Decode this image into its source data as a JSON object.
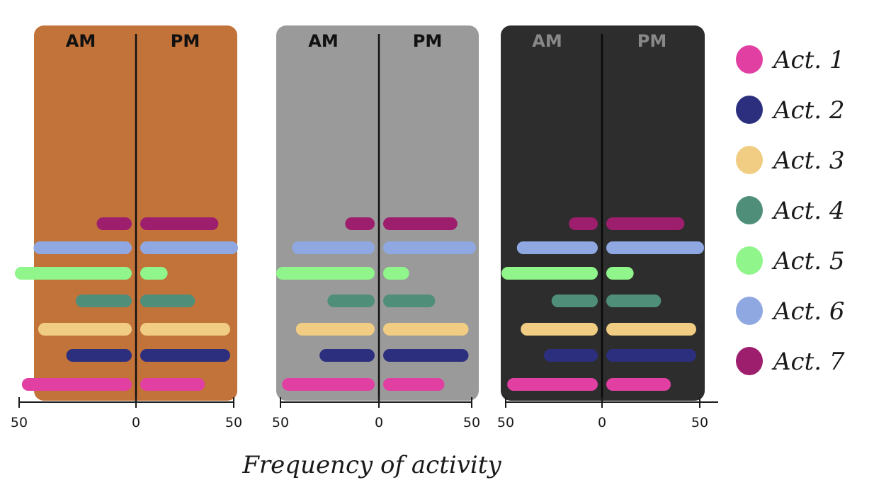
{
  "chart_data": {
    "type": "bar",
    "orientation": "diverging-horizontal",
    "xlabel": "Frequency of activity",
    "xlim": [
      -50,
      50
    ],
    "xticks": [
      "50",
      "0",
      "50"
    ],
    "halves": [
      "AM",
      "PM"
    ],
    "legend_placement": "right",
    "series": [
      {
        "name": "Act. 1",
        "color": "#e23fa3"
      },
      {
        "name": "Act. 2",
        "color": "#2c2f7e"
      },
      {
        "name": "Act. 3",
        "color": "#f0cd82"
      },
      {
        "name": "Act. 4",
        "color": "#4f8f7a"
      },
      {
        "name": "Act. 5",
        "color": "#90f58a"
      },
      {
        "name": "Act. 6",
        "color": "#8fa8e2"
      },
      {
        "name": "Act. 7",
        "color": "#9e1e6e"
      }
    ],
    "panels": [
      {
        "background": "#c2733a",
        "values": {
          "Act. 1": {
            "AM": 47,
            "PM": 33
          },
          "Act. 2": {
            "AM": 28,
            "PM": 46
          },
          "Act. 3": {
            "AM": 40,
            "PM": 46
          },
          "Act. 4": {
            "AM": 24,
            "PM": 28
          },
          "Act. 5": {
            "AM": 50,
            "PM": 14
          },
          "Act. 6": {
            "AM": 42,
            "PM": 50
          },
          "Act. 7": {
            "AM": 15,
            "PM": 40
          }
        }
      },
      {
        "background": "#9a9a9a",
        "values": {
          "Act. 1": {
            "AM": 47,
            "PM": 33
          },
          "Act. 2": {
            "AM": 28,
            "PM": 46
          },
          "Act. 3": {
            "AM": 40,
            "PM": 46
          },
          "Act. 4": {
            "AM": 24,
            "PM": 28
          },
          "Act. 5": {
            "AM": 50,
            "PM": 14
          },
          "Act. 6": {
            "AM": 42,
            "PM": 50
          },
          "Act. 7": {
            "AM": 15,
            "PM": 40
          }
        }
      },
      {
        "background": "#2d2d2d",
        "values": {
          "Act. 1": {
            "AM": 47,
            "PM": 33
          },
          "Act. 2": {
            "AM": 28,
            "PM": 46
          },
          "Act. 3": {
            "AM": 40,
            "PM": 46
          },
          "Act. 4": {
            "AM": 24,
            "PM": 28
          },
          "Act. 5": {
            "AM": 50,
            "PM": 14
          },
          "Act. 6": {
            "AM": 42,
            "PM": 50
          },
          "Act. 7": {
            "AM": 15,
            "PM": 40
          }
        }
      }
    ]
  }
}
